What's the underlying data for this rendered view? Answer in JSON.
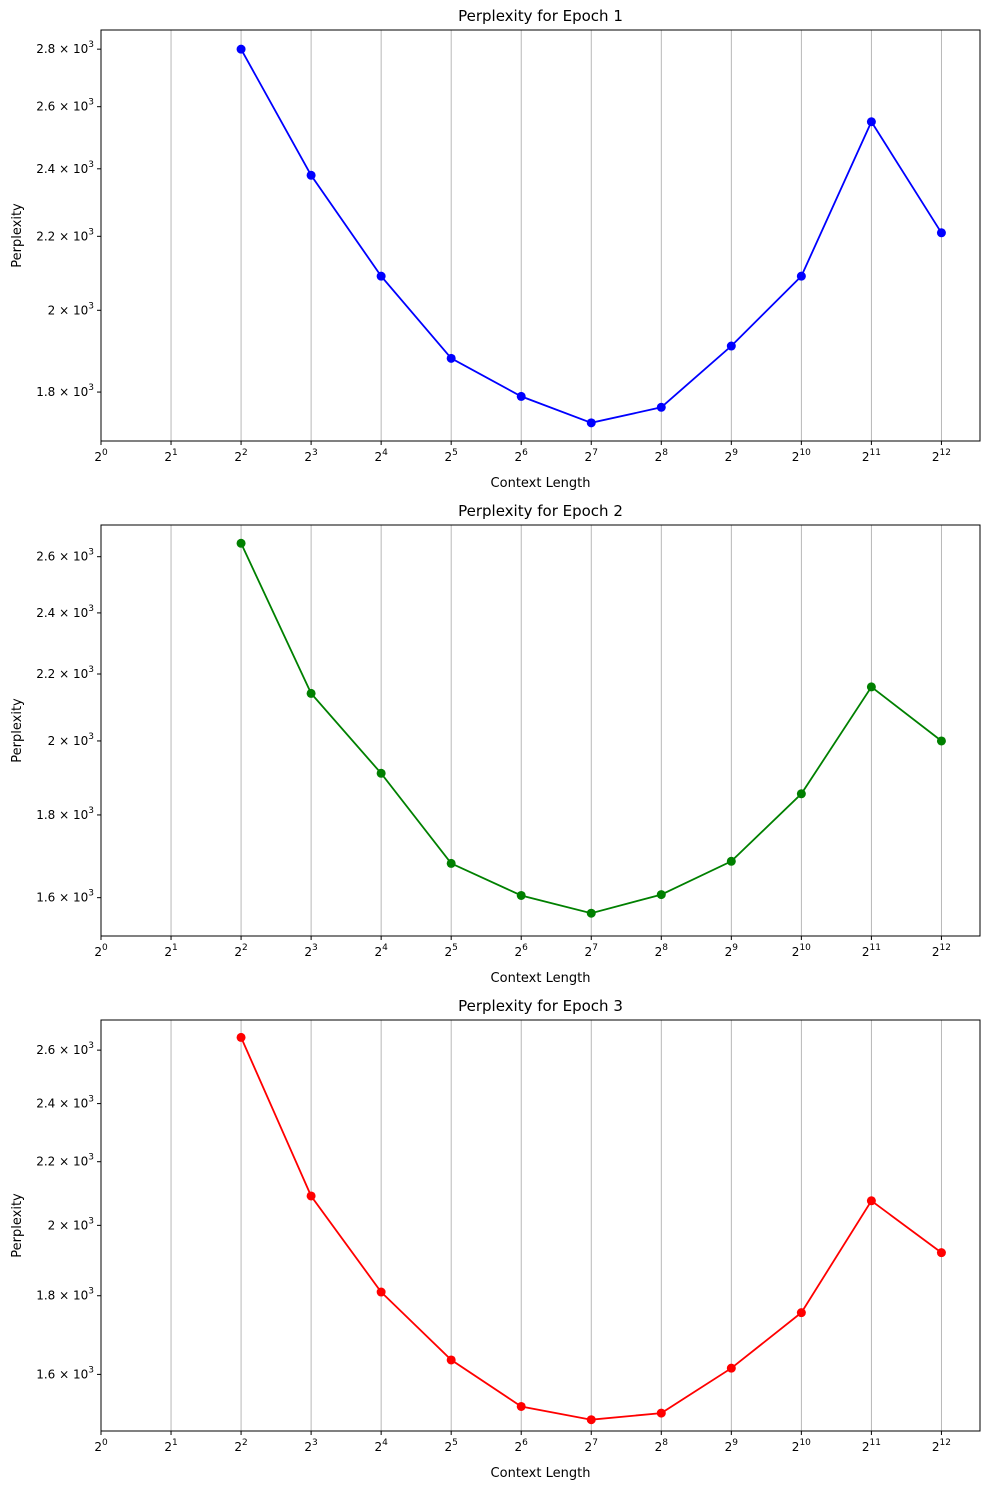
{
  "chart_data": [
    {
      "type": "line",
      "title": "Perplexity for Epoch 1",
      "xlabel": "Context Length",
      "ylabel": "Perplexity",
      "xscale": "log2",
      "yscale": "log",
      "xlim": [
        1,
        6000
      ],
      "ylim": [
        1690,
        2870
      ],
      "xticks": [
        1,
        2,
        4,
        8,
        16,
        32,
        64,
        128,
        256,
        512,
        1024,
        2048,
        4096
      ],
      "xtick_exponents": [
        "0",
        "1",
        "2",
        "3",
        "4",
        "5",
        "6",
        "7",
        "8",
        "9",
        "10",
        "11",
        "12"
      ],
      "yticks": [
        1800,
        2000,
        2200,
        2400,
        2600,
        2800
      ],
      "ytick_mantissas": [
        "1.8",
        "2",
        "2.2",
        "2.4",
        "2.6",
        "2.8"
      ],
      "grid": "x-axis vertical lines",
      "color": "#0000ff",
      "series": [
        {
          "x": [
            4,
            8,
            16,
            32,
            64,
            128,
            256,
            512,
            1024,
            2048,
            4096
          ],
          "y": [
            2800,
            2380,
            2090,
            1880,
            1790,
            1730,
            1765,
            1910,
            2090,
            2550,
            2210
          ]
        }
      ]
    },
    {
      "type": "line",
      "title": "Perplexity for Epoch 2",
      "xlabel": "Context Length",
      "ylabel": "Perplexity",
      "xscale": "log2",
      "yscale": "log",
      "xlim": [
        1,
        6000
      ],
      "ylim": [
        1515,
        2720
      ],
      "xticks": [
        1,
        2,
        4,
        8,
        16,
        32,
        64,
        128,
        256,
        512,
        1024,
        2048,
        4096
      ],
      "xtick_exponents": [
        "0",
        "1",
        "2",
        "3",
        "4",
        "5",
        "6",
        "7",
        "8",
        "9",
        "10",
        "11",
        "12"
      ],
      "yticks": [
        1600,
        1800,
        2000,
        2200,
        2400,
        2600
      ],
      "ytick_mantissas": [
        "1.6",
        "1.8",
        "2",
        "2.2",
        "2.4",
        "2.6"
      ],
      "grid": "x-axis vertical lines",
      "color": "#008000",
      "series": [
        {
          "x": [
            4,
            8,
            16,
            32,
            64,
            128,
            256,
            512,
            1024,
            2048,
            4096
          ],
          "y": [
            2650,
            2140,
            1910,
            1680,
            1605,
            1565,
            1607,
            1685,
            1855,
            2160,
            2000
          ]
        }
      ]
    },
    {
      "type": "line",
      "title": "Perplexity for Epoch 3",
      "xlabel": "Context Length",
      "ylabel": "Perplexity",
      "xscale": "log2",
      "yscale": "log",
      "xlim": [
        1,
        6000
      ],
      "ylim": [
        1470,
        2720
      ],
      "xticks": [
        1,
        2,
        4,
        8,
        16,
        32,
        64,
        128,
        256,
        512,
        1024,
        2048,
        4096
      ],
      "xtick_exponents": [
        "0",
        "1",
        "2",
        "3",
        "4",
        "5",
        "6",
        "7",
        "8",
        "9",
        "10",
        "11",
        "12"
      ],
      "yticks": [
        1600,
        1800,
        2000,
        2200,
        2400,
        2600
      ],
      "ytick_mantissas": [
        "1.6",
        "1.8",
        "2",
        "2.2",
        "2.4",
        "2.6"
      ],
      "grid": "x-axis vertical lines",
      "color": "#ff0000",
      "series": [
        {
          "x": [
            4,
            8,
            16,
            32,
            64,
            128,
            256,
            512,
            1024,
            2048,
            4096
          ],
          "y": [
            2650,
            2090,
            1810,
            1635,
            1525,
            1495,
            1510,
            1615,
            1755,
            2075,
            1920
          ]
        }
      ]
    }
  ]
}
